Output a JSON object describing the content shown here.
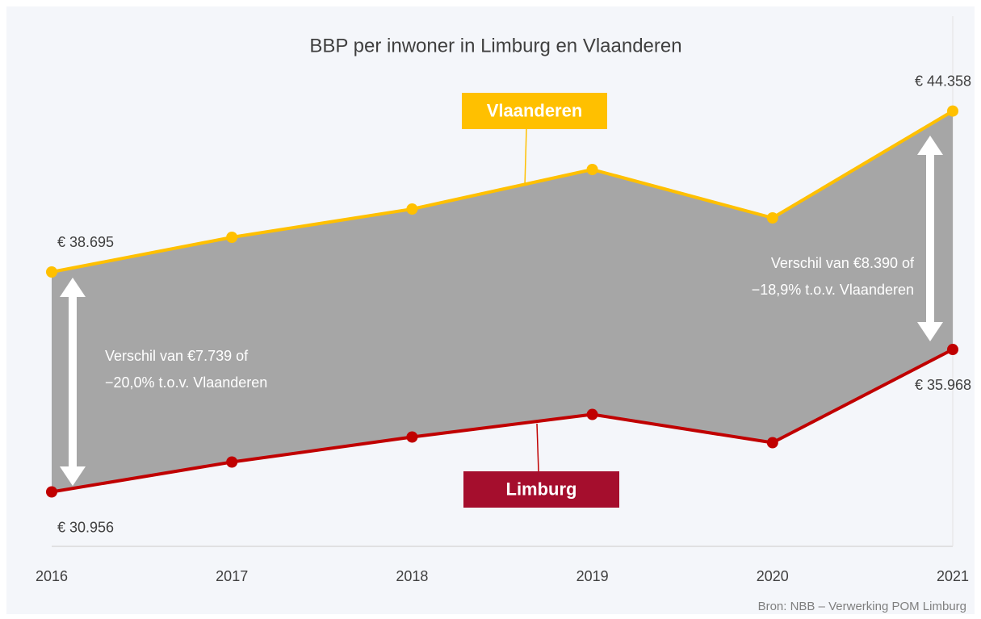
{
  "chart_data": {
    "type": "line",
    "title": "BBP per inwoner in Limburg en Vlaanderen",
    "categories": [
      "2016",
      "2017",
      "2018",
      "2019",
      "2020",
      "2021"
    ],
    "series": [
      {
        "name": "Vlaanderen",
        "color": "#FFC000",
        "values": [
          38695,
          39916,
          40910,
          42302,
          40598,
          44358
        ],
        "value_labels": [
          "€ 38.695",
          null,
          null,
          null,
          null,
          "€ 44.358"
        ]
      },
      {
        "name": "Limburg",
        "color": "#C00000",
        "label_color": "#A50E2D",
        "values": [
          30956,
          32007,
          32887,
          33682,
          32688,
          35968
        ],
        "value_labels": [
          "€ 30.956",
          null,
          null,
          null,
          null,
          "€ 35.968"
        ]
      }
    ],
    "area_color": "#A6A6A6",
    "ylim": [
      29039,
      47698
    ],
    "annotations": [
      [
        "Verschil van €7.739 of",
        "−20,0% t.o.v. Vlaanderen"
      ],
      [
        "Verschil van €8.390 of",
        "−18,9% t.o.v. Vlaanderen"
      ]
    ],
    "source": "Bron: NBB – Verwerking POM Limburg"
  }
}
